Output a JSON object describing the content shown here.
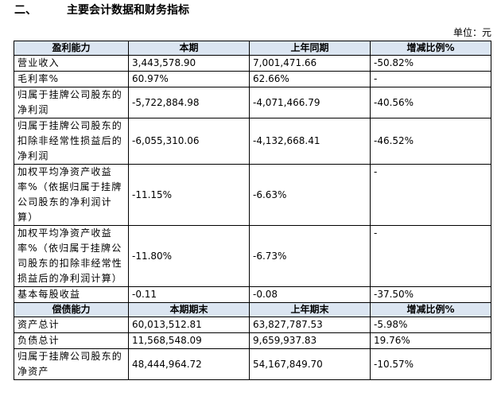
{
  "header": {
    "number": "二、",
    "title": "主要会计数据和财务指标",
    "unit": "单位：元"
  },
  "table": {
    "profit_header": [
      "盈利能力",
      "本期",
      "上年同期",
      "增减比例%"
    ],
    "profit_rows": [
      [
        "营业收入",
        "3,443,578.90",
        "7,001,471.66",
        "-50.82%"
      ],
      [
        "毛利率%",
        "60.97%",
        "62.66%",
        "-"
      ],
      [
        "归属于挂牌公司股东的净利润",
        "-5,722,884.98",
        "-4,071,466.79",
        "-40.56%"
      ],
      [
        "归属于挂牌公司股东的扣除非经常性损益后的净利润",
        "-6,055,310.06",
        "-4,132,668.41",
        "-46.52%"
      ],
      [
        "加权平均净资产收益率%（依据归属于挂牌公司股东的净利润计算）",
        "-11.15%",
        "-6.63%",
        "-"
      ],
      [
        "加权平均净资产收益率%（依归属于挂牌公司股东的扣除非经常性损益后的净利润计算）",
        "-11.80%",
        "-6.73%",
        "-"
      ],
      [
        "基本每股收益",
        "-0.11",
        "-0.08",
        "-37.50%"
      ]
    ],
    "debt_header": [
      "偿债能力",
      "本期期末",
      "上年期末",
      "增减比例%"
    ],
    "debt_rows": [
      [
        "资产总计",
        "60,013,512.81",
        "63,827,787.53",
        "-5.98%"
      ],
      [
        "负债总计",
        "11,568,548.09",
        "9,659,937.83",
        "19.76%"
      ],
      [
        "归属于挂牌公司股东的净资产",
        "48,444,964.72",
        "54,167,849.70",
        "-10.57%"
      ]
    ]
  }
}
